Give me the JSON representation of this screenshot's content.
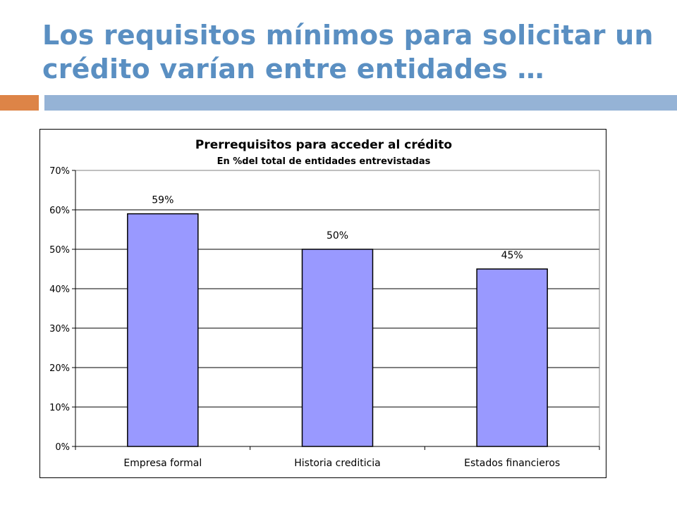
{
  "slide": {
    "title_line1": "Los requisitos mínimos para solicitar un",
    "title_line2": "crédito varían entre entidades …"
  },
  "colors": {
    "title": "#5a8fc2",
    "accent_orange": "#dd8447",
    "accent_blue": "#95b3d6",
    "bar_fill": "#9999ff"
  },
  "chart_data": {
    "type": "bar",
    "title": "Prerrequisitos para acceder al crédito",
    "subtitle": "En %del total de entidades entrevistadas",
    "categories": [
      "Empresa formal",
      "Historia crediticia",
      "Estados financieros"
    ],
    "values": [
      59,
      50,
      45
    ],
    "data_labels": [
      "59%",
      "50%",
      "45%"
    ],
    "ylim": [
      0,
      70
    ],
    "yticks": [
      0,
      10,
      20,
      30,
      40,
      50,
      60,
      70
    ],
    "ytick_labels": [
      "0%",
      "10%",
      "20%",
      "30%",
      "40%",
      "50%",
      "60%",
      "70%"
    ],
    "grid": true,
    "legend": "none"
  }
}
